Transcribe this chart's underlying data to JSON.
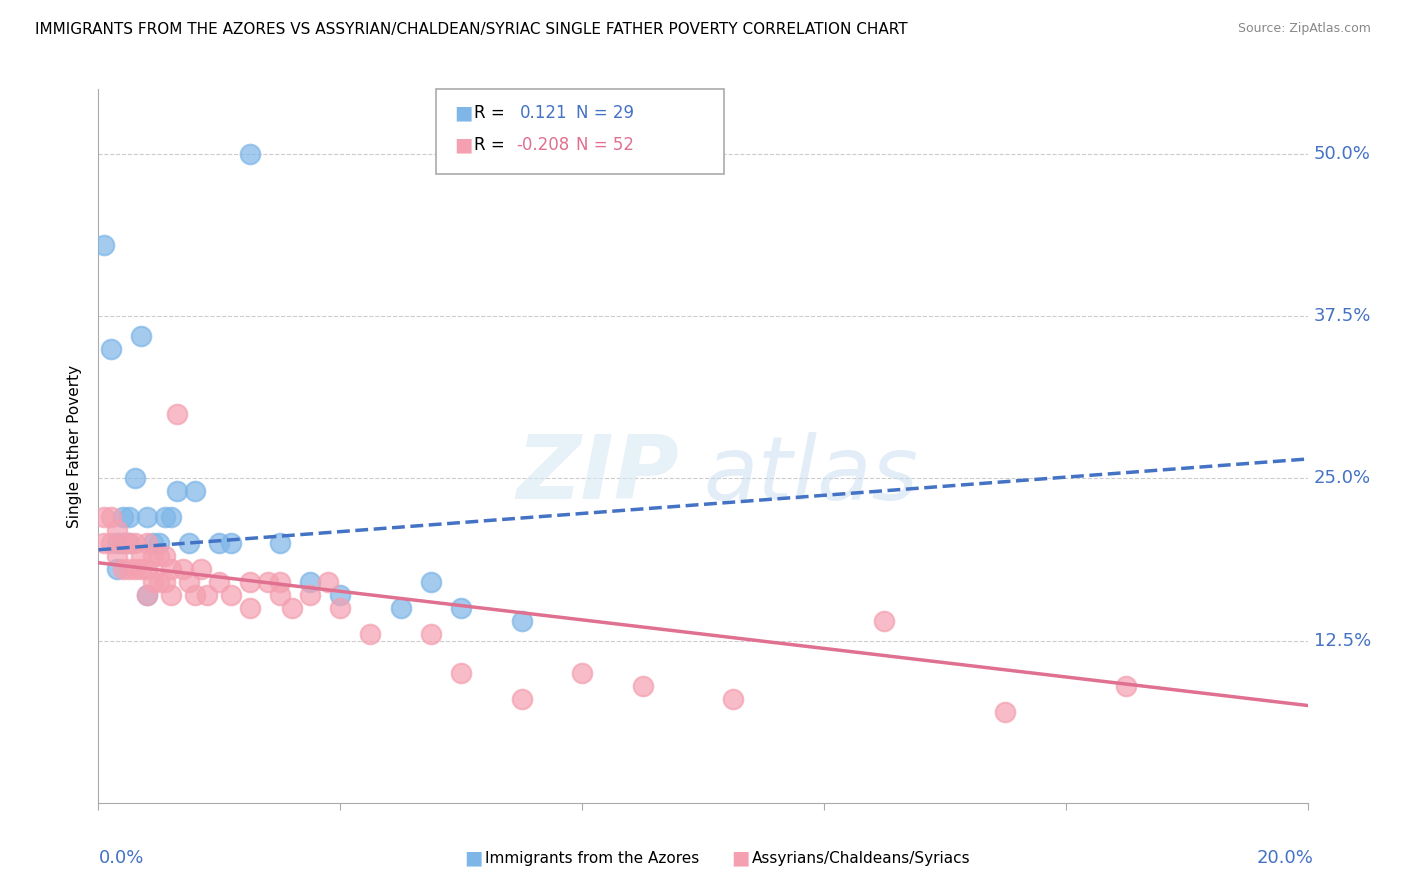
{
  "title": "IMMIGRANTS FROM THE AZORES VS ASSYRIAN/CHALDEAN/SYRIAC SINGLE FATHER POVERTY CORRELATION CHART",
  "source": "Source: ZipAtlas.com",
  "ylabel": "Single Father Poverty",
  "ytick_labels": [
    "50.0%",
    "37.5%",
    "25.0%",
    "12.5%"
  ],
  "ytick_values": [
    0.5,
    0.375,
    0.25,
    0.125
  ],
  "xlim": [
    0.0,
    0.2
  ],
  "ylim": [
    0.0,
    0.55
  ],
  "legend1_label": "Immigrants from the Azores",
  "legend2_label": "Assyrians/Chaldeans/Syriacs",
  "r1": 0.121,
  "n1": 29,
  "r2": -0.208,
  "n2": 52,
  "color_blue": "#7EB6E8",
  "color_pink": "#F4A0B0",
  "color_trend_blue": "#4472C4",
  "color_trend_pink": "#E07090",
  "blue_trend_x": [
    0.0,
    0.2
  ],
  "blue_trend_y": [
    0.195,
    0.265
  ],
  "pink_trend_x": [
    0.0,
    0.2
  ],
  "pink_trend_y": [
    0.185,
    0.075
  ],
  "blue_points_x": [
    0.001,
    0.002,
    0.003,
    0.004,
    0.004,
    0.005,
    0.005,
    0.006,
    0.007,
    0.008,
    0.009,
    0.01,
    0.011,
    0.012,
    0.013,
    0.015,
    0.016,
    0.02,
    0.022,
    0.025,
    0.03,
    0.035,
    0.04,
    0.05,
    0.055,
    0.06,
    0.07,
    0.008,
    0.003
  ],
  "blue_points_y": [
    0.43,
    0.35,
    0.2,
    0.2,
    0.22,
    0.2,
    0.22,
    0.25,
    0.36,
    0.22,
    0.2,
    0.2,
    0.22,
    0.22,
    0.24,
    0.2,
    0.24,
    0.2,
    0.2,
    0.5,
    0.2,
    0.17,
    0.16,
    0.15,
    0.17,
    0.15,
    0.14,
    0.16,
    0.18
  ],
  "pink_points_x": [
    0.001,
    0.001,
    0.002,
    0.002,
    0.003,
    0.003,
    0.004,
    0.004,
    0.005,
    0.005,
    0.006,
    0.006,
    0.007,
    0.007,
    0.008,
    0.008,
    0.008,
    0.009,
    0.009,
    0.01,
    0.01,
    0.011,
    0.011,
    0.012,
    0.012,
    0.013,
    0.014,
    0.015,
    0.016,
    0.017,
    0.018,
    0.02,
    0.022,
    0.025,
    0.025,
    0.028,
    0.03,
    0.03,
    0.032,
    0.035,
    0.038,
    0.04,
    0.045,
    0.055,
    0.06,
    0.07,
    0.08,
    0.09,
    0.105,
    0.13,
    0.15,
    0.17
  ],
  "pink_points_y": [
    0.2,
    0.22,
    0.2,
    0.22,
    0.19,
    0.21,
    0.18,
    0.2,
    0.18,
    0.2,
    0.18,
    0.2,
    0.18,
    0.19,
    0.16,
    0.18,
    0.2,
    0.17,
    0.19,
    0.17,
    0.19,
    0.17,
    0.19,
    0.16,
    0.18,
    0.3,
    0.18,
    0.17,
    0.16,
    0.18,
    0.16,
    0.17,
    0.16,
    0.17,
    0.15,
    0.17,
    0.16,
    0.17,
    0.15,
    0.16,
    0.17,
    0.15,
    0.13,
    0.13,
    0.1,
    0.08,
    0.1,
    0.09,
    0.08,
    0.14,
    0.07,
    0.09
  ]
}
